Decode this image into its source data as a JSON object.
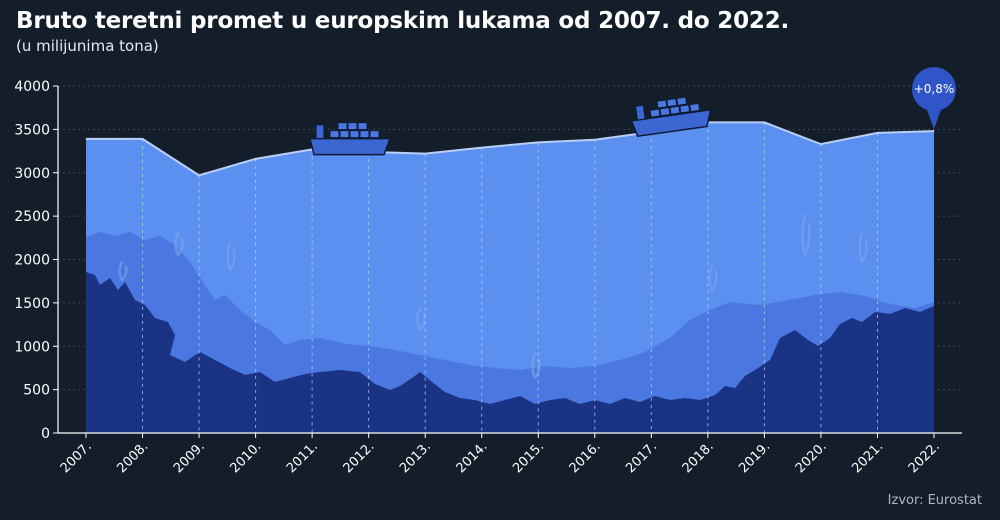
{
  "title": "Bruto teretni promet u europskim lukama od 2007. do 2022.",
  "subtitle": "(u milijunima tona)",
  "source": "Izvor: Eurostat",
  "colors": {
    "background": "#131e2a",
    "area": "#5b8ff0",
    "area_line": "#b9cff8",
    "reef_back": "#4a78e0",
    "reef_front": "#1a3384",
    "callout": "#2f55c9"
  },
  "chart_data": {
    "type": "area",
    "title": "Bruto teretni promet u europskim lukama od 2007. do 2022.",
    "subtitle": "(u milijunima tona)",
    "categories": [
      "2007.",
      "2008.",
      "2009.",
      "2010.",
      "2011.",
      "2012.",
      "2013.",
      "2014.",
      "2015.",
      "2016.",
      "2017.",
      "2018.",
      "2019.",
      "2020.",
      "2021.",
      "2022."
    ],
    "series": [
      {
        "values": [
          3390,
          3390,
          2970,
          3160,
          3270,
          3240,
          3220,
          3290,
          3350,
          3380,
          3470,
          3580,
          3580,
          3330,
          3460,
          3480
        ]
      }
    ],
    "ylim": [
      0,
      4000
    ],
    "yticks": [
      0,
      500,
      1000,
      1500,
      2000,
      2500,
      3000,
      3500,
      4000
    ],
    "grid": true,
    "annotation": {
      "category": "2022.",
      "text": "+0,8%"
    },
    "decorations": [
      "ship-icon",
      "ship-icon",
      "coral-reef-silhouette"
    ]
  }
}
